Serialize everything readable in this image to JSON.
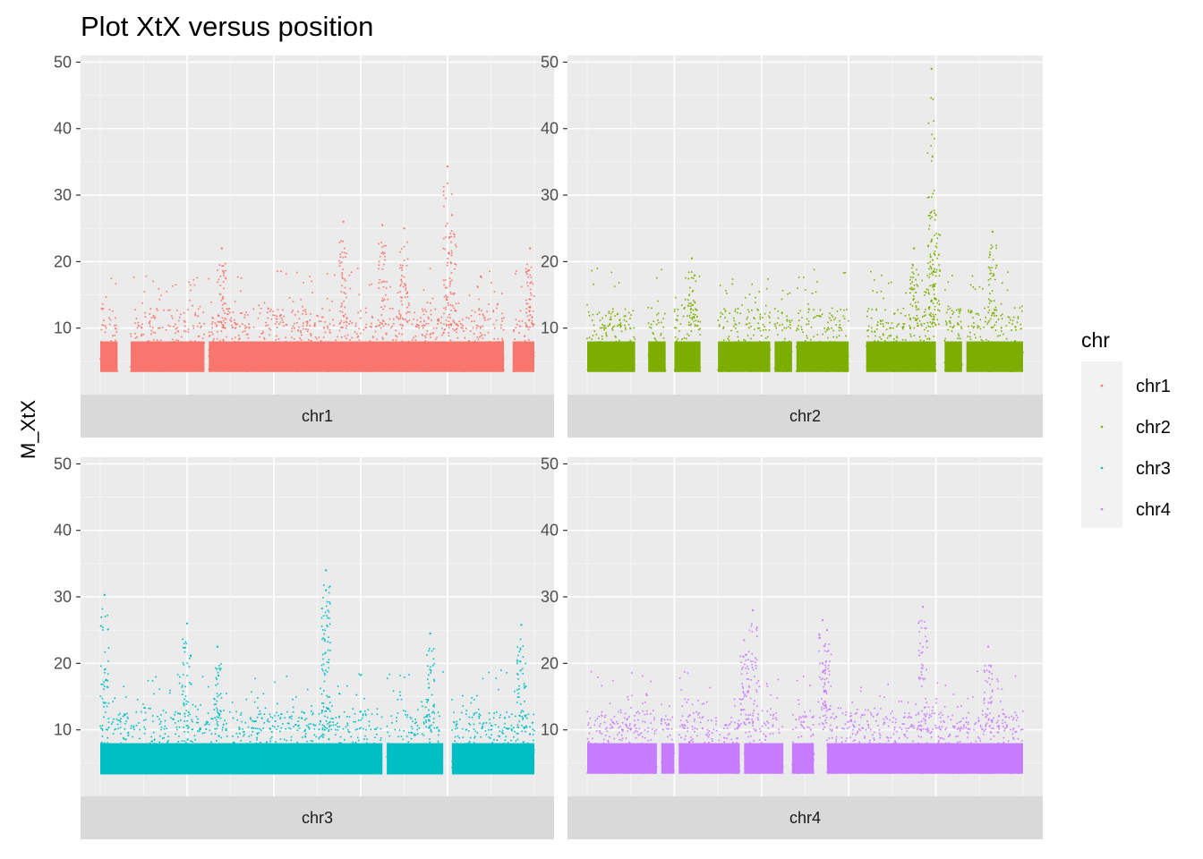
{
  "chart_data": {
    "type": "scatter",
    "title": "Plot XtX versus position",
    "xlabel": "",
    "ylabel": "M_XtX",
    "ylim": [
      0,
      51
    ],
    "y_ticks": [
      10,
      20,
      30,
      40,
      50
    ],
    "grid": true,
    "legend": {
      "title": "chr",
      "placement": "right",
      "entries": [
        "chr1",
        "chr2",
        "chr3",
        "chr4"
      ]
    },
    "colors": {
      "chr1": "#F8766D",
      "chr2": "#7CAE00",
      "chr3": "#00BFC4",
      "chr4": "#C77CFF"
    },
    "facets": [
      {
        "name": "chr1",
        "baseline_min": 3.2,
        "segments": [
          [
            0.0,
            0.04
          ],
          [
            0.07,
            0.24
          ],
          [
            0.25,
            0.93
          ],
          [
            0.95,
            1.0
          ]
        ],
        "peaks": [
          {
            "x": 0.8,
            "y": 34.3
          },
          {
            "x": 0.81,
            "y": 27
          },
          {
            "x": 0.56,
            "y": 26
          },
          {
            "x": 0.65,
            "y": 25.5
          },
          {
            "x": 0.7,
            "y": 25
          },
          {
            "x": 0.28,
            "y": 22
          },
          {
            "x": 0.99,
            "y": 22
          }
        ]
      },
      {
        "name": "chr2",
        "baseline_min": 3.2,
        "segments": [
          [
            0.0,
            0.11
          ],
          [
            0.14,
            0.18
          ],
          [
            0.2,
            0.26
          ],
          [
            0.3,
            0.42
          ],
          [
            0.43,
            0.47
          ],
          [
            0.48,
            0.6
          ],
          [
            0.64,
            0.8
          ],
          [
            0.82,
            0.86
          ],
          [
            0.87,
            1.0
          ]
        ],
        "peaks": [
          {
            "x": 0.79,
            "y": 49
          },
          {
            "x": 0.79,
            "y": 27.5
          },
          {
            "x": 0.8,
            "y": 27
          },
          {
            "x": 0.93,
            "y": 24.5
          },
          {
            "x": 0.75,
            "y": 22
          },
          {
            "x": 0.24,
            "y": 20.5
          }
        ]
      },
      {
        "name": "chr3",
        "baseline_min": 3.1,
        "segments": [
          [
            0.0,
            0.37
          ],
          [
            0.37,
            0.65
          ],
          [
            0.66,
            0.79
          ],
          [
            0.81,
            1.0
          ]
        ],
        "peaks": [
          {
            "x": 0.52,
            "y": 34
          },
          {
            "x": 0.52,
            "y": 31
          },
          {
            "x": 0.01,
            "y": 30.3
          },
          {
            "x": 0.2,
            "y": 26
          },
          {
            "x": 0.97,
            "y": 25.8
          },
          {
            "x": 0.76,
            "y": 24.5
          },
          {
            "x": 0.27,
            "y": 22.5
          }
        ]
      },
      {
        "name": "chr4",
        "baseline_min": 3.2,
        "segments": [
          [
            0.0,
            0.16
          ],
          [
            0.17,
            0.2
          ],
          [
            0.21,
            0.35
          ],
          [
            0.36,
            0.45
          ],
          [
            0.47,
            0.52
          ],
          [
            0.55,
            1.0
          ]
        ],
        "peaks": [
          {
            "x": 0.77,
            "y": 28.5
          },
          {
            "x": 0.38,
            "y": 28
          },
          {
            "x": 0.54,
            "y": 26.5
          },
          {
            "x": 0.55,
            "y": 25
          },
          {
            "x": 0.36,
            "y": 23.5
          },
          {
            "x": 0.92,
            "y": 22.5
          }
        ]
      }
    ]
  }
}
